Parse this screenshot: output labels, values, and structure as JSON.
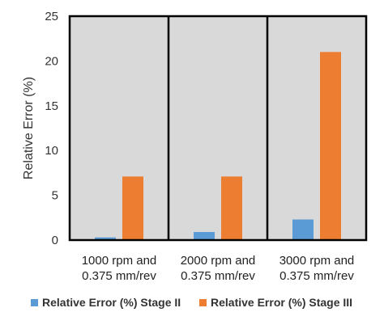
{
  "chart_data": {
    "type": "bar",
    "title": "",
    "xlabel": "",
    "ylabel": "Relative Error (%)",
    "categories": [
      [
        "1000 rpm and",
        "0.375 mm/rev"
      ],
      [
        "2000 rpm and",
        "0.375 mm/rev"
      ],
      [
        "3000 rpm and",
        "0.375 mm/rev"
      ]
    ],
    "series": [
      {
        "name": "Relative Error (%) Stage II",
        "color": "#5b9bd5",
        "values": [
          0.3,
          0.9,
          2.3
        ]
      },
      {
        "name": "Relative Error (%) Stage III",
        "color": "#ed7d31",
        "values": [
          7.1,
          7.1,
          21.0
        ]
      }
    ],
    "ylim": [
      0,
      25
    ],
    "yticks": [
      0,
      5,
      10,
      15,
      20,
      25
    ],
    "grid": false,
    "plot_background": "#d9d9d9",
    "legend_position": "bottom"
  }
}
